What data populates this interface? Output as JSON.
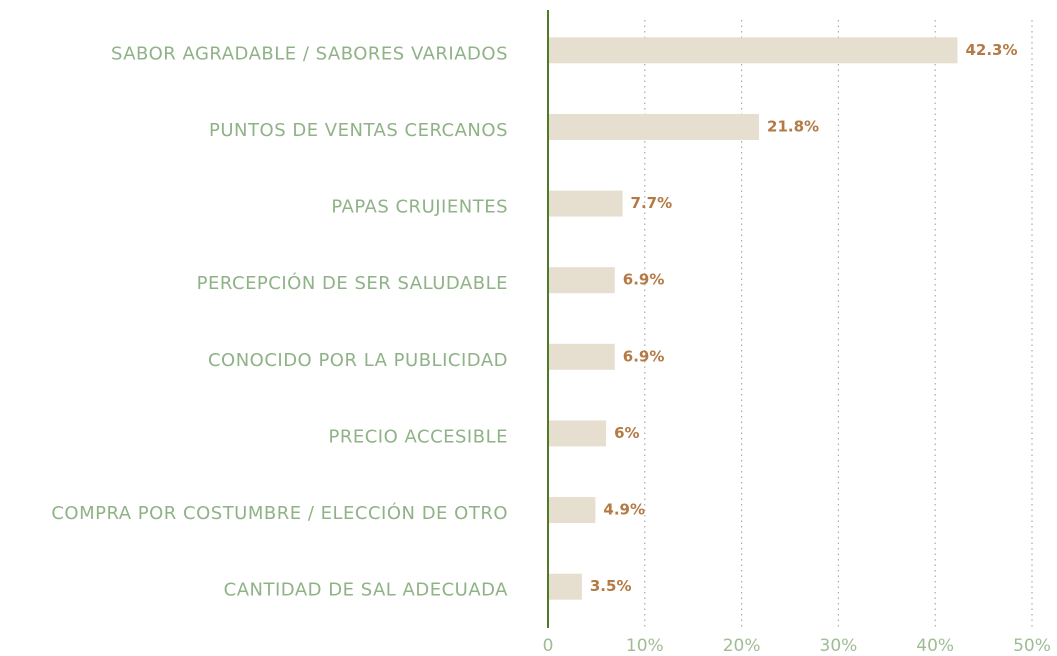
{
  "chart_data": {
    "type": "bar",
    "orientation": "horizontal",
    "categories": [
      "SABOR AGRADABLE / SABORES VARIADOS",
      "PUNTOS DE VENTAS CERCANOS",
      "PAPAS CRUJIENTES",
      "PERCEPCIÓN DE SER SALUDABLE",
      "CONOCIDO POR LA PUBLICIDAD",
      "PRECIO ACCESIBLE",
      "COMPRA POR COSTUMBRE / ELECCIÓN DE OTRO",
      "CANTIDAD DE SAL ADECUADA"
    ],
    "values": [
      42.3,
      21.8,
      7.7,
      6.9,
      6.9,
      6,
      4.9,
      3.5
    ],
    "value_labels": [
      "42.3%",
      "21.8%",
      "7.7%",
      "6.9%",
      "6.9%",
      "6%",
      "4.9%",
      "3.5%"
    ],
    "color": "#e6dfcf",
    "xlim": [
      0,
      50
    ],
    "xticks": [
      0,
      {
        "value": 10,
        "label": "10%"
      },
      {
        "value": 20,
        "label": "20%"
      },
      {
        "value": 30,
        "label": "30%"
      },
      {
        "value": 40,
        "label": "40%"
      },
      {
        "value": 50,
        "label": "50%"
      }
    ],
    "grid": true
  }
}
